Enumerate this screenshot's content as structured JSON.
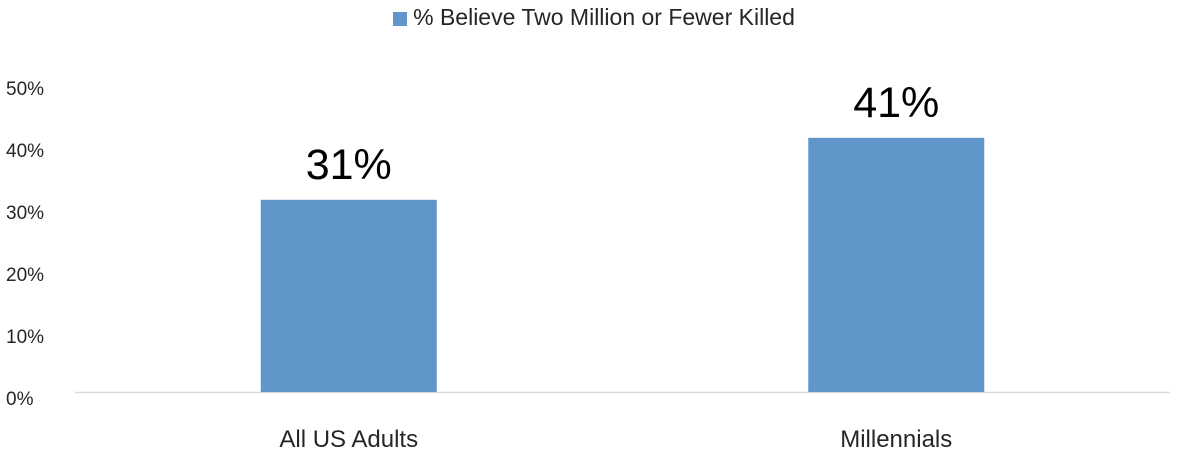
{
  "chart_data": {
    "type": "bar",
    "categories": [
      "All US Adults",
      "Millennials"
    ],
    "series": [
      {
        "name": "% Believe Two Million or Fewer Killed",
        "values": [
          31,
          41
        ],
        "color": "#6096CA"
      }
    ],
    "data_labels": [
      "31%",
      "41%"
    ],
    "y_ticks": [
      0,
      10,
      20,
      30,
      40,
      50
    ],
    "y_tick_labels": [
      "0%",
      "10%",
      "20%",
      "30%",
      "40%",
      "50%"
    ],
    "ylim": [
      0,
      50
    ],
    "grid": false,
    "legend_position": "top",
    "axis_color": "#D9D9D9"
  }
}
